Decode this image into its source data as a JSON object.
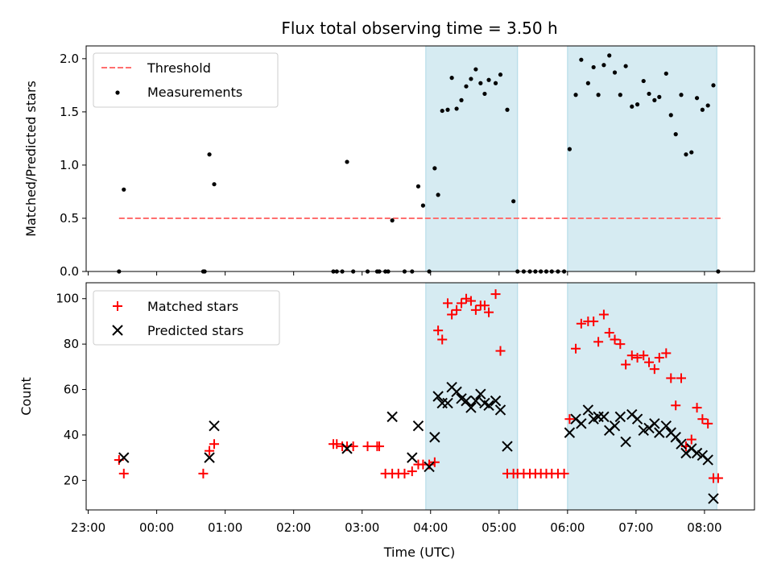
{
  "chart_data": {
    "type": "scatter",
    "title": "Flux total observing time = 3.50 h",
    "xlabel": "Time (UTC)",
    "x_tick_labels": [
      "23:00",
      "00:00",
      "01:00",
      "02:00",
      "03:00",
      "04:00",
      "05:00",
      "06:00",
      "07:00",
      "08:00"
    ],
    "x_ticks_hours": [
      -1,
      0,
      1,
      2,
      3,
      4,
      5,
      6,
      7,
      8
    ],
    "xlim_hours": [
      -1.03,
      8.73
    ],
    "shaded_intervals_hours": [
      [
        3.93,
        5.27
      ],
      [
        6.0,
        8.18
      ]
    ],
    "colors": {
      "threshold": "#ff6f6f",
      "measurements": "#000000",
      "matched": "#ff0000",
      "predicted": "#000000",
      "shade_fill": "#add8e6"
    },
    "panels": [
      {
        "name": "ratio",
        "ylabel": "Matched/Predicted stars",
        "ylim": [
          0,
          2.12
        ],
        "y_ticks": [
          0.0,
          0.5,
          1.0,
          1.5,
          2.0
        ],
        "y_tick_labels": [
          "0.0",
          "0.5",
          "1.0",
          "1.5",
          "2.0"
        ],
        "legend_position": "upper-left",
        "threshold": {
          "name": "Threshold",
          "y": 0.5,
          "x_range_hours": [
            -0.55,
            8.27
          ]
        },
        "series": [
          {
            "name": "Measurements",
            "marker": "dot",
            "points": [
              [
                -0.55,
                0.0
              ],
              [
                -0.48,
                0.77
              ],
              [
                0.68,
                0.0
              ],
              [
                0.7,
                0.0
              ],
              [
                0.77,
                1.1
              ],
              [
                0.84,
                0.82
              ],
              [
                2.58,
                0.0
              ],
              [
                2.63,
                0.0
              ],
              [
                2.71,
                0.0
              ],
              [
                2.78,
                1.03
              ],
              [
                2.87,
                0.0
              ],
              [
                3.08,
                0.0
              ],
              [
                3.22,
                0.0
              ],
              [
                3.25,
                0.0
              ],
              [
                3.34,
                0.0
              ],
              [
                3.38,
                0.0
              ],
              [
                3.44,
                0.48
              ],
              [
                3.62,
                0.0
              ],
              [
                3.73,
                0.0
              ],
              [
                3.82,
                0.8
              ],
              [
                3.89,
                0.62
              ],
              [
                3.98,
                0.0
              ],
              [
                4.06,
                0.97
              ],
              [
                4.11,
                0.72
              ],
              [
                4.17,
                1.51
              ],
              [
                4.25,
                1.52
              ],
              [
                4.31,
                1.82
              ],
              [
                4.38,
                1.53
              ],
              [
                4.45,
                1.61
              ],
              [
                4.52,
                1.74
              ],
              [
                4.59,
                1.81
              ],
              [
                4.66,
                1.9
              ],
              [
                4.73,
                1.77
              ],
              [
                4.79,
                1.67
              ],
              [
                4.85,
                1.8
              ],
              [
                4.95,
                1.77
              ],
              [
                5.02,
                1.85
              ],
              [
                5.12,
                1.52
              ],
              [
                5.21,
                0.66
              ],
              [
                5.27,
                0.0
              ],
              [
                5.36,
                0.0
              ],
              [
                5.45,
                0.0
              ],
              [
                5.53,
                0.0
              ],
              [
                5.61,
                0.0
              ],
              [
                5.69,
                0.0
              ],
              [
                5.77,
                0.0
              ],
              [
                5.86,
                0.0
              ],
              [
                5.95,
                0.0
              ],
              [
                6.03,
                1.15
              ],
              [
                6.12,
                1.66
              ],
              [
                6.2,
                1.99
              ],
              [
                6.3,
                1.77
              ],
              [
                6.38,
                1.92
              ],
              [
                6.45,
                1.66
              ],
              [
                6.53,
                1.94
              ],
              [
                6.61,
                2.03
              ],
              [
                6.69,
                1.87
              ],
              [
                6.77,
                1.66
              ],
              [
                6.85,
                1.93
              ],
              [
                6.94,
                1.55
              ],
              [
                7.02,
                1.57
              ],
              [
                7.11,
                1.79
              ],
              [
                7.19,
                1.67
              ],
              [
                7.27,
                1.61
              ],
              [
                7.34,
                1.64
              ],
              [
                7.44,
                1.86
              ],
              [
                7.51,
                1.47
              ],
              [
                7.58,
                1.29
              ],
              [
                7.66,
                1.66
              ],
              [
                7.73,
                1.1
              ],
              [
                7.81,
                1.12
              ],
              [
                7.89,
                1.63
              ],
              [
                7.97,
                1.52
              ],
              [
                8.05,
                1.56
              ],
              [
                8.13,
                1.75
              ],
              [
                8.2,
                0.0
              ]
            ]
          }
        ]
      },
      {
        "name": "count",
        "ylabel": "Count",
        "ylim": [
          7,
          107
        ],
        "y_ticks": [
          20,
          40,
          60,
          80,
          100
        ],
        "y_tick_labels": [
          "20",
          "40",
          "60",
          "80",
          "100"
        ],
        "legend_position": "upper-left",
        "series": [
          {
            "name": "Matched stars",
            "marker": "plus",
            "points": [
              [
                -0.55,
                29
              ],
              [
                -0.48,
                23
              ],
              [
                0.68,
                23
              ],
              [
                0.77,
                33
              ],
              [
                0.84,
                36
              ],
              [
                2.58,
                36
              ],
              [
                2.63,
                36
              ],
              [
                2.71,
                35
              ],
              [
                2.78,
                35
              ],
              [
                2.87,
                35
              ],
              [
                3.08,
                35
              ],
              [
                3.22,
                35
              ],
              [
                3.25,
                35
              ],
              [
                3.34,
                23
              ],
              [
                3.44,
                23
              ],
              [
                3.53,
                23
              ],
              [
                3.62,
                23
              ],
              [
                3.73,
                24
              ],
              [
                3.82,
                27
              ],
              [
                3.89,
                27
              ],
              [
                3.98,
                27
              ],
              [
                4.06,
                28
              ],
              [
                4.11,
                86
              ],
              [
                4.17,
                82
              ],
              [
                4.25,
                98
              ],
              [
                4.31,
                93
              ],
              [
                4.38,
                95
              ],
              [
                4.45,
                98
              ],
              [
                4.52,
                100
              ],
              [
                4.59,
                99
              ],
              [
                4.66,
                95
              ],
              [
                4.73,
                97
              ],
              [
                4.79,
                97
              ],
              [
                4.85,
                94
              ],
              [
                4.95,
                102
              ],
              [
                5.02,
                77
              ],
              [
                5.12,
                23
              ],
              [
                5.21,
                23
              ],
              [
                5.27,
                23
              ],
              [
                5.36,
                23
              ],
              [
                5.45,
                23
              ],
              [
                5.53,
                23
              ],
              [
                5.61,
                23
              ],
              [
                5.69,
                23
              ],
              [
                5.77,
                23
              ],
              [
                5.86,
                23
              ],
              [
                5.95,
                23
              ],
              [
                6.03,
                47
              ],
              [
                6.12,
                78
              ],
              [
                6.2,
                89
              ],
              [
                6.3,
                90
              ],
              [
                6.38,
                90
              ],
              [
                6.45,
                81
              ],
              [
                6.53,
                93
              ],
              [
                6.61,
                85
              ],
              [
                6.69,
                82
              ],
              [
                6.77,
                80
              ],
              [
                6.85,
                71
              ],
              [
                6.94,
                75
              ],
              [
                7.02,
                74
              ],
              [
                7.11,
                75
              ],
              [
                7.19,
                72
              ],
              [
                7.27,
                69
              ],
              [
                7.34,
                74
              ],
              [
                7.44,
                76
              ],
              [
                7.51,
                65
              ],
              [
                7.58,
                53
              ],
              [
                7.66,
                65
              ],
              [
                7.73,
                35
              ],
              [
                7.81,
                38
              ],
              [
                7.89,
                52
              ],
              [
                7.97,
                47
              ],
              [
                8.05,
                45
              ],
              [
                8.13,
                21
              ],
              [
                8.2,
                21
              ]
            ]
          },
          {
            "name": "Predicted stars",
            "marker": "x",
            "points": [
              [
                -0.48,
                30
              ],
              [
                0.77,
                30
              ],
              [
                0.84,
                44
              ],
              [
                2.78,
                34
              ],
              [
                3.44,
                48
              ],
              [
                3.73,
                30
              ],
              [
                3.82,
                44
              ],
              [
                3.98,
                26
              ],
              [
                4.06,
                39
              ],
              [
                4.11,
                57
              ],
              [
                4.17,
                54
              ],
              [
                4.25,
                54
              ],
              [
                4.31,
                61
              ],
              [
                4.38,
                59
              ],
              [
                4.45,
                56
              ],
              [
                4.52,
                55
              ],
              [
                4.59,
                52
              ],
              [
                4.66,
                55
              ],
              [
                4.73,
                58
              ],
              [
                4.79,
                54
              ],
              [
                4.85,
                53
              ],
              [
                4.95,
                55
              ],
              [
                5.02,
                51
              ],
              [
                5.12,
                35
              ],
              [
                6.03,
                41
              ],
              [
                6.12,
                47
              ],
              [
                6.2,
                45
              ],
              [
                6.3,
                51
              ],
              [
                6.38,
                47
              ],
              [
                6.45,
                48
              ],
              [
                6.53,
                48
              ],
              [
                6.61,
                42
              ],
              [
                6.69,
                44
              ],
              [
                6.77,
                48
              ],
              [
                6.85,
                37
              ],
              [
                6.94,
                49
              ],
              [
                7.02,
                47
              ],
              [
                7.11,
                42
              ],
              [
                7.19,
                43
              ],
              [
                7.27,
                45
              ],
              [
                7.34,
                41
              ],
              [
                7.44,
                44
              ],
              [
                7.51,
                41
              ],
              [
                7.58,
                39
              ],
              [
                7.66,
                36
              ],
              [
                7.73,
                32
              ],
              [
                7.81,
                34
              ],
              [
                7.89,
                32
              ],
              [
                7.97,
                31
              ],
              [
                8.05,
                29
              ],
              [
                8.13,
                12
              ]
            ]
          }
        ]
      }
    ]
  }
}
